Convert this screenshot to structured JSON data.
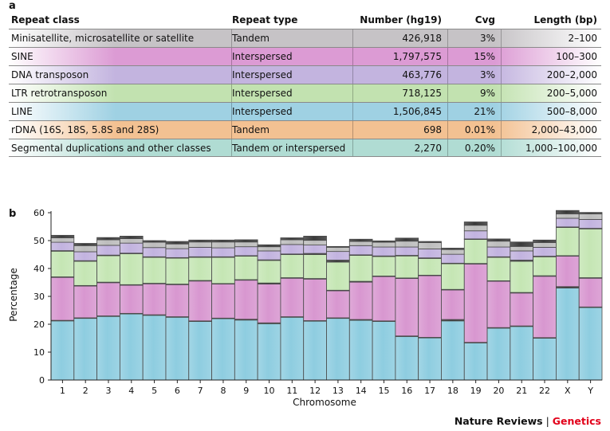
{
  "panel_a": "a",
  "panel_b": "b",
  "table": {
    "headers": [
      "Repeat class",
      "Repeat type",
      "Number (hg19)",
      "Cvg",
      "Length (bp)"
    ],
    "rows": [
      {
        "cells": [
          "Minisatellite, microsatellite or satellite",
          "Tandem",
          "426,918",
          "3%",
          "2–100"
        ],
        "color": "#c6c3c6"
      },
      {
        "cells": [
          "SINE",
          "Interspersed",
          "1,797,575",
          "15%",
          "100–300"
        ],
        "color": "#dc9bd4"
      },
      {
        "cells": [
          "DNA transposon",
          "Interspersed",
          "463,776",
          "3%",
          "200–2,000"
        ],
        "color": "#c3b4df"
      },
      {
        "cells": [
          "LTR retrotransposon",
          "Interspersed",
          "718,125",
          "9%",
          "200–5,000"
        ],
        "color": "#c2e2b0"
      },
      {
        "cells": [
          "LINE",
          "Interspersed",
          "1,506,845",
          "21%",
          "500–8,000"
        ],
        "color": "#9fd1e3"
      },
      {
        "cells": [
          "rDNA (16S, 18S, 5.8S and 28S)",
          "Tandem",
          "698",
          "0.01%",
          "2,000–43,000"
        ],
        "color": "#f3c192"
      },
      {
        "cells": [
          "Segmental duplications and other classes",
          "Tandem or interspersed",
          "2,270",
          "0.20%",
          "1,000–100,000"
        ],
        "color": "#b0dcd3"
      }
    ]
  },
  "colors": {
    "line": "#8ecde0",
    "sine": "#d897d0",
    "ltr": "#c5e6b4",
    "dna": "#c2b3df",
    "satellite": "#bdbdbd",
    "other": "#3a3a3a",
    "footer_accent": "#e2001a"
  },
  "chart_data": {
    "type": "bar",
    "stacked": true,
    "xlabel": "Chromosome",
    "ylabel": "Percentage",
    "ylim": [
      0,
      60
    ],
    "yticks": [
      0,
      10,
      20,
      30,
      40,
      50,
      60
    ],
    "categories": [
      "1",
      "2",
      "3",
      "4",
      "5",
      "6",
      "7",
      "8",
      "9",
      "10",
      "11",
      "12",
      "13",
      "14",
      "15",
      "16",
      "17",
      "18",
      "19",
      "20",
      "21",
      "22",
      "X",
      "Y"
    ],
    "series": [
      {
        "key": "line",
        "values": [
          21.2,
          22.1,
          22.8,
          23.7,
          23.2,
          22.5,
          21.0,
          22.0,
          21.5,
          20.2,
          22.5,
          21.1,
          22.1,
          21.4,
          21.0,
          15.6,
          15.1,
          21.2,
          13.3,
          18.6,
          19.2,
          15.0,
          33.0,
          26.0
        ]
      },
      {
        "key": "other",
        "values": [
          0.2,
          0.2,
          0.2,
          0.2,
          0.2,
          0.2,
          0.2,
          0.2,
          0.3,
          0.3,
          0.2,
          0.2,
          0.2,
          0.3,
          0.2,
          0.2,
          0.2,
          0.5,
          0.2,
          0.2,
          0.2,
          0.2,
          0.5,
          0.2
        ]
      },
      {
        "key": "sine",
        "values": [
          15.4,
          11.4,
          11.9,
          10.1,
          11.1,
          11.5,
          14.3,
          12.2,
          14.0,
          13.9,
          13.8,
          14.9,
          9.7,
          13.4,
          15.9,
          20.6,
          22.1,
          10.6,
          28.1,
          16.6,
          11.8,
          22.0,
          10.9,
          10.3
        ]
      },
      {
        "key": "other",
        "values": [
          0.2,
          0.2,
          0.2,
          0.2,
          0.2,
          0.2,
          0.2,
          0.2,
          0.2,
          0.4,
          0.2,
          0.2,
          0.2,
          0.3,
          0.2,
          0.2,
          0.2,
          0.2,
          0.2,
          0.2,
          0.2,
          0.2,
          0.2,
          0.2
        ]
      },
      {
        "key": "ltr",
        "values": [
          9.2,
          8.7,
          9.5,
          11.1,
          9.3,
          9.3,
          8.3,
          9.4,
          8.4,
          8.1,
          8.3,
          8.6,
          10.1,
          9.3,
          7.0,
          7.9,
          6.0,
          9.2,
          8.6,
          8.4,
          11.2,
          6.8,
          10.1,
          17.5
        ]
      },
      {
        "key": "other",
        "values": [
          0.2,
          0.2,
          0.2,
          0.2,
          0.2,
          0.2,
          0.2,
          0.2,
          0.2,
          0.2,
          0.2,
          0.4,
          0.7,
          0.2,
          0.2,
          0.2,
          0.2,
          0.2,
          0.2,
          0.2,
          0.4,
          0.2,
          0.2,
          0.2
        ]
      },
      {
        "key": "dna",
        "values": [
          3.0,
          3.2,
          3.5,
          3.6,
          3.3,
          3.2,
          3.4,
          3.2,
          3.2,
          3.2,
          3.4,
          3.0,
          3.1,
          3.3,
          3.2,
          3.0,
          3.2,
          3.2,
          2.9,
          3.5,
          3.3,
          3.2,
          3.1,
          3.2
        ]
      },
      {
        "key": "satellite",
        "values": [
          1.6,
          2.2,
          2.0,
          1.6,
          1.9,
          1.7,
          1.9,
          2.1,
          1.7,
          1.5,
          1.7,
          1.7,
          1.5,
          1.5,
          1.7,
          2.1,
          2.3,
          1.7,
          2.0,
          2.1,
          1.6,
          1.7,
          1.6,
          2.0
        ]
      },
      {
        "key": "other",
        "values": [
          0.9,
          0.8,
          0.8,
          0.9,
          0.6,
          0.9,
          0.7,
          0.7,
          0.8,
          0.7,
          0.7,
          1.5,
          0.3,
          0.8,
          0.5,
          1.1,
          0.4,
          0.5,
          1.2,
          0.8,
          1.6,
          0.9,
          1.2,
          0.5
        ]
      }
    ]
  },
  "footer": {
    "journal": "Nature Reviews",
    "separator": " | ",
    "section": "Genetics"
  }
}
